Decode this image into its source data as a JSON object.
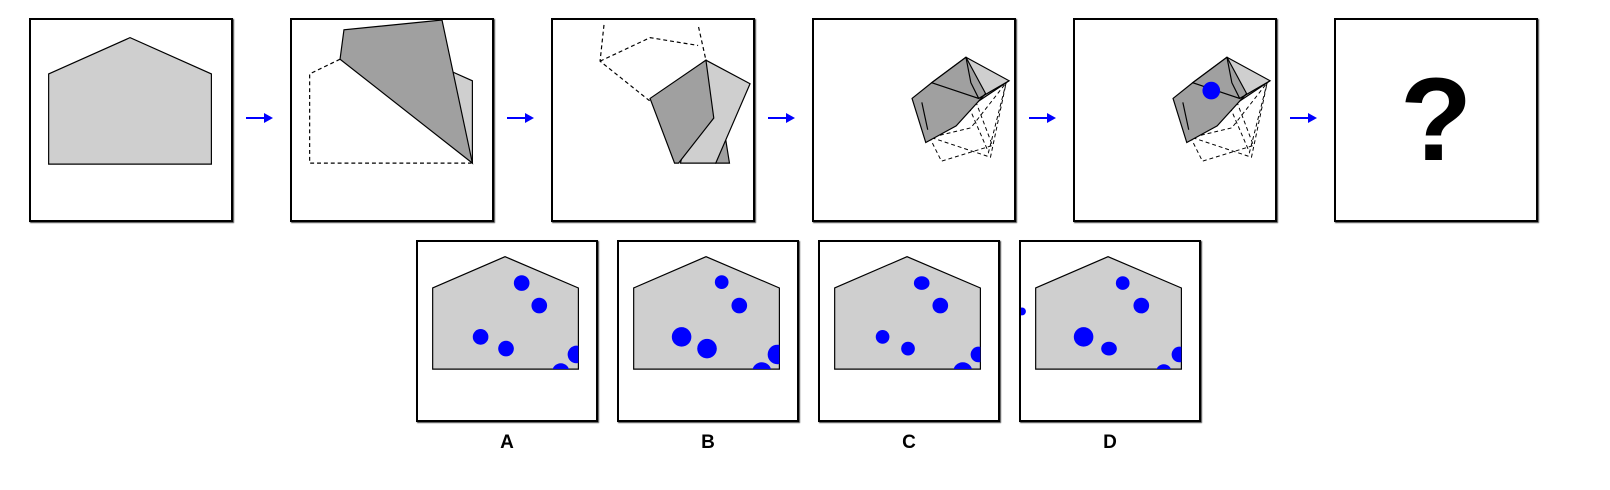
{
  "colors": {
    "paper": "#cfcfcf",
    "fold": "#a0a0a0",
    "hole": "#0000ff",
    "arrow": "#0000ff",
    "outline": "#000000"
  },
  "steps": [
    "unfolded-sheet",
    "fold-1",
    "fold-2",
    "fold-3",
    "punched-hole"
  ],
  "question": {
    "symbol": "?"
  },
  "options": [
    {
      "label": "A"
    },
    {
      "label": "B"
    },
    {
      "label": "C"
    },
    {
      "label": "D"
    }
  ]
}
